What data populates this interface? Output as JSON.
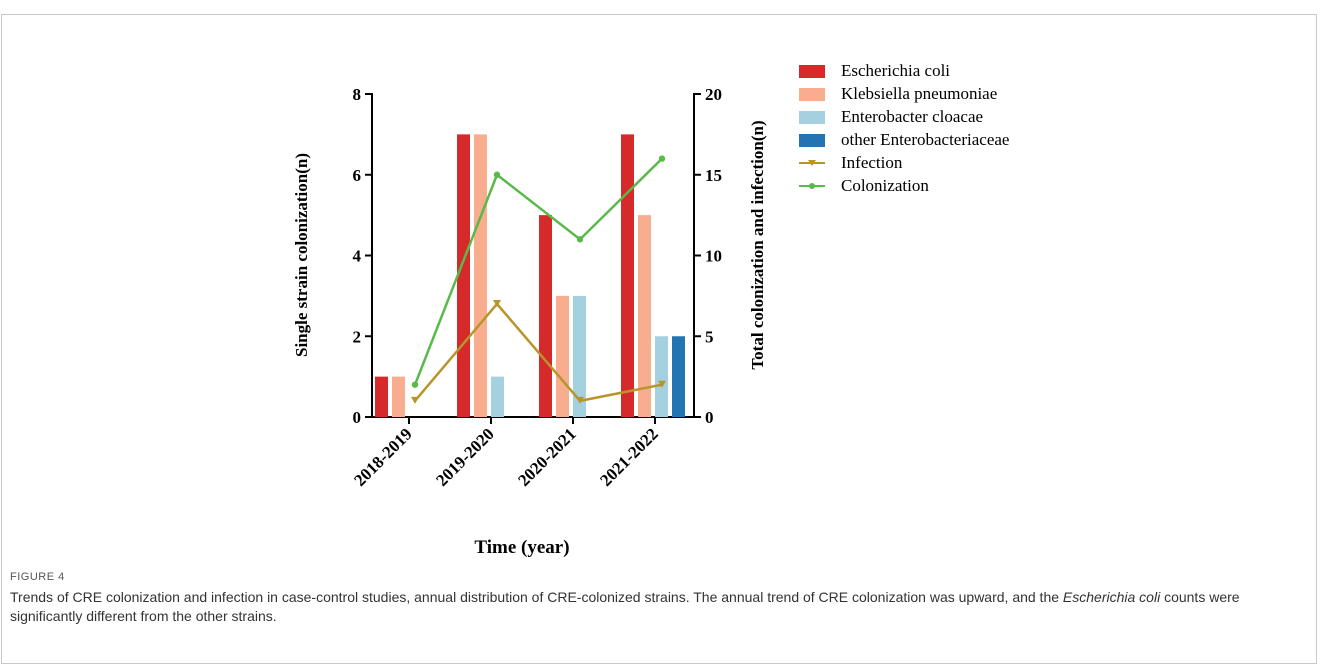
{
  "chart_data": {
    "type": "bar",
    "categories": [
      "2018-2019",
      "2019-2020",
      "2020-2021",
      "2021-2022"
    ],
    "xlabel": "Time (year)",
    "ylabel": "Single strain colonization(n)",
    "y2label": "Total colonization and infection(n)",
    "ylim": [
      0,
      8
    ],
    "y2lim": [
      0,
      20
    ],
    "yticks": [
      0,
      2,
      4,
      6,
      8
    ],
    "y2ticks": [
      0,
      5,
      10,
      15,
      20
    ],
    "legend_position": "right",
    "grid": false,
    "bar_series": [
      {
        "name": "Escherichia coli",
        "color": "#d62a2a",
        "values": [
          1,
          7,
          5,
          7
        ]
      },
      {
        "name": "Klebsiella pneumoniae",
        "color": "#f8ad8f",
        "values": [
          1,
          7,
          3,
          5
        ]
      },
      {
        "name": "Enterobacter cloacae",
        "color": "#a5d0e0",
        "values": [
          0,
          1,
          3,
          2
        ]
      },
      {
        "name": "other Enterobacteriaceae",
        "color": "#2474b4",
        "values": [
          0,
          0,
          0,
          2
        ]
      }
    ],
    "line_series": [
      {
        "name": "Infection",
        "color": "#b8952a",
        "marker": "triangle-down",
        "axis": "right",
        "values": [
          1,
          7,
          1,
          2
        ]
      },
      {
        "name": "Colonization",
        "color": "#5ab94b",
        "marker": "circle",
        "axis": "right",
        "values": [
          2,
          15,
          11,
          16
        ]
      }
    ]
  },
  "caption": {
    "label": "FIGURE 4",
    "text_part1": "Trends of CRE colonization and infection in case-control studies, annual distribution of CRE-colonized strains. The annual trend of CRE colonization was upward, and the ",
    "text_italic": "Escherichia coli",
    "text_part2": " counts were significantly different from the other strains."
  }
}
